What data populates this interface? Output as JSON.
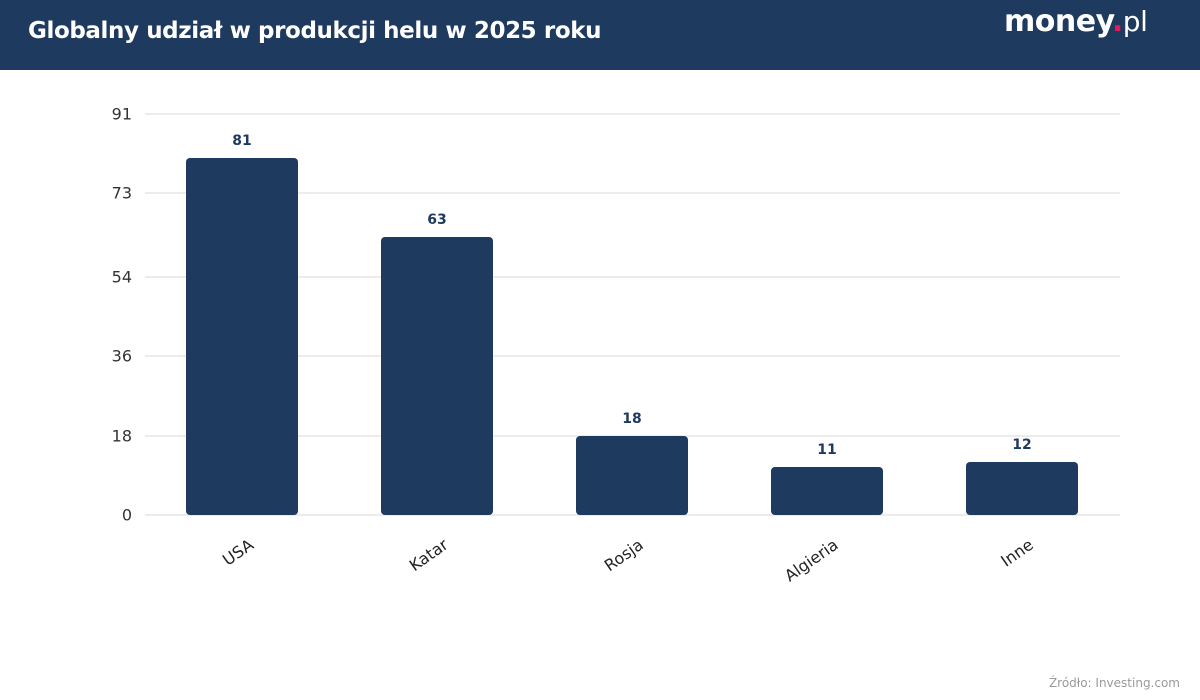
{
  "header": {
    "title": "Globalny udział w produkcji helu w 2025 roku",
    "logo": {
      "main": "money",
      "dot": ".",
      "suffix": "pl"
    },
    "background_color": "#1f3a5f"
  },
  "footer": {
    "source": "Źródło: Investing.com"
  },
  "chart_data": {
    "type": "bar",
    "title": "Globalny udział w produkcji helu w 2025 roku",
    "xlabel": "",
    "ylabel": "",
    "categories": [
      "USA",
      "Katar",
      "Rosja",
      "Algieria",
      "Inne"
    ],
    "values": [
      81,
      63,
      18,
      11,
      12
    ],
    "data_labels": [
      "81",
      "63",
      "18",
      "11",
      "12"
    ],
    "yticks": [
      0,
      18,
      36,
      54,
      73,
      91
    ],
    "ylim": [
      0,
      91
    ],
    "grid": true,
    "legend": null,
    "bar_color": "#1f3a5f",
    "source": "Źródło: Investing.com"
  }
}
